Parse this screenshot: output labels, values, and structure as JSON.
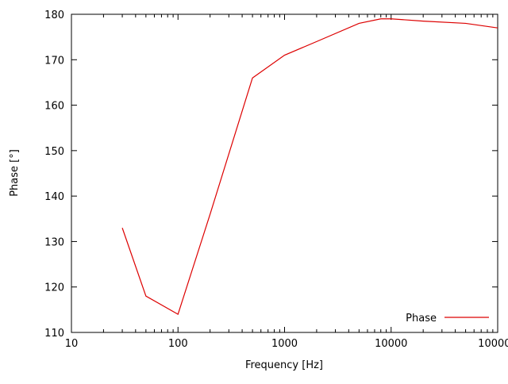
{
  "chart": {
    "xlabel": "Frequency [Hz]",
    "ylabel": "Phase [°]",
    "legend_label": "Phase",
    "line_color": "#dd0000",
    "border_color": "#000000",
    "background_color": "#ffffff"
  },
  "chart_data": {
    "type": "line",
    "title": "",
    "xlabel": "Frequency [Hz]",
    "ylabel": "Phase [°]",
    "xscale": "log",
    "xlim": [
      10,
      100000
    ],
    "ylim": [
      110,
      180
    ],
    "xticks": [
      10,
      100,
      1000,
      10000,
      100000
    ],
    "xtick_labels": [
      "10",
      "100",
      "1000",
      "10000",
      "100000"
    ],
    "yticks": [
      110,
      120,
      130,
      140,
      150,
      160,
      170,
      180
    ],
    "grid": false,
    "legend_position": "bottom-right",
    "series": [
      {
        "name": "Phase",
        "color": "#dd0000",
        "x": [
          30,
          50,
          100,
          200,
          500,
          1000,
          2000,
          5000,
          8000,
          10000,
          20000,
          50000,
          100000
        ],
        "values": [
          133,
          118,
          114,
          136,
          166,
          171,
          174,
          178,
          179,
          179,
          178.5,
          178,
          177
        ]
      }
    ]
  }
}
